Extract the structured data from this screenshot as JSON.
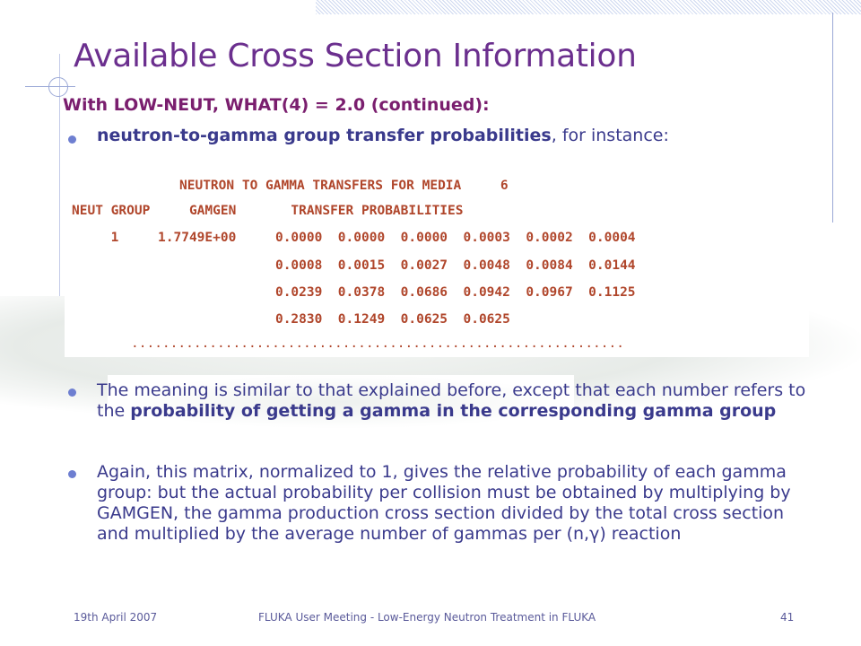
{
  "slide": {
    "title": "Available Cross Section Information",
    "subtitle": "With LOW-NEUT, WHAT(4) = 2.0 (continued):",
    "bullet1": {
      "bold": "neutron-to-gamma group transfer probabilities",
      "rest": ", for instance:"
    },
    "code": {
      "header": "NEUTRON TO GAMMA TRANSFERS FOR MEDIA     6",
      "columns": "NEUT GROUP     GAMGEN       TRANSFER PROBABILITIES",
      "rows": [
        "     1     1.7749E+00     0.0000  0.0000  0.0000  0.0003  0.0002  0.0004",
        "                          0.0008  0.0015  0.0027  0.0048  0.0084  0.0144",
        "                          0.0239  0.0378  0.0686  0.0942  0.0967  0.1125",
        "                          0.2830  0.1249  0.0625  0.0625"
      ],
      "ellipsis": "..............................................................."
    },
    "bullet2": {
      "pre": "The meaning is similar to that explained before, except that each number refers to the ",
      "bold": "probability of getting a gamma in the corresponding gamma group"
    },
    "bullet3": {
      "text": "Again, this matrix, normalized to 1, gives the relative probability of each gamma group: but the actual probability per collision must be obtained by multiplying by GAMGEN, the gamma production cross section divided by the total cross section and multiplied by the average number of gammas per (n,",
      "gamma": "γ",
      "end": ") reaction"
    }
  },
  "footer": {
    "date": "19th April 2007",
    "center": "FLUKA User Meeting - Low-Energy Neutron Treatment in FLUKA",
    "page": "41"
  },
  "colors": {
    "title": "#6b2f8e",
    "subtitle": "#7a1e6e",
    "body": "#3a3a8c",
    "code": "#b0462b",
    "bullet": "#6e7fd1"
  }
}
